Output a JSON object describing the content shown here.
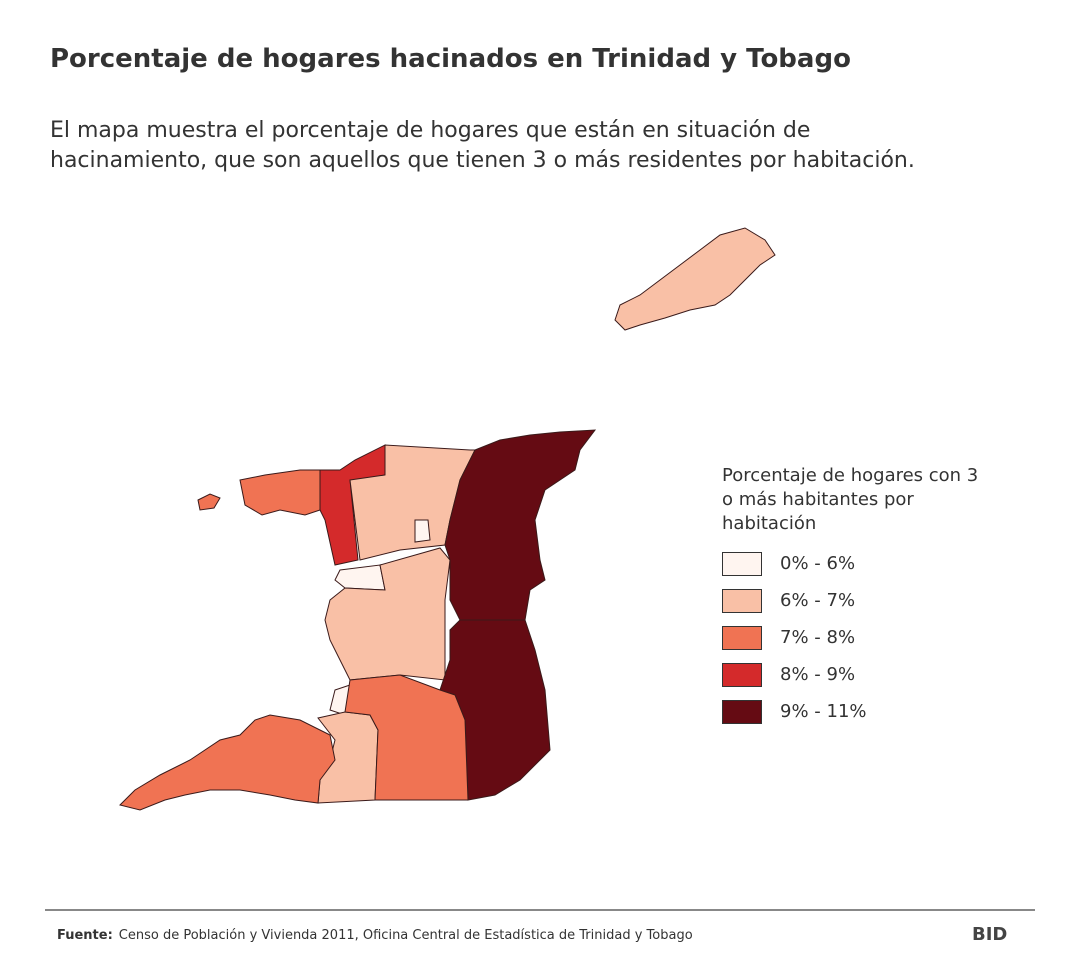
{
  "header": {
    "title": "Porcentaje de hogares hacinados en Trinidad y Tobago",
    "subtitle": "El mapa muestra el porcentaje de hogares que están en situación de hacinamiento, que son aquellos que tienen 3 o más residentes por habitación."
  },
  "legend": {
    "title": "Porcentaje de hogares con 3 o más habitantes por habitación",
    "items": [
      {
        "label": "0% - 6%",
        "color": "#fff5f0"
      },
      {
        "label": "6% - 7%",
        "color": "#f9c0a6"
      },
      {
        "label": "7% - 8%",
        "color": "#f07353"
      },
      {
        "label": "8% - 9%",
        "color": "#d42a2b"
      },
      {
        "label": "9% - 11%",
        "color": "#650b13"
      }
    ]
  },
  "footer": {
    "source_label": "Fuente:",
    "source": "Censo de Población y Vivienda 2011, Oficina Central de Estadística de Trinidad y Tobago",
    "logo": "BID"
  }
}
